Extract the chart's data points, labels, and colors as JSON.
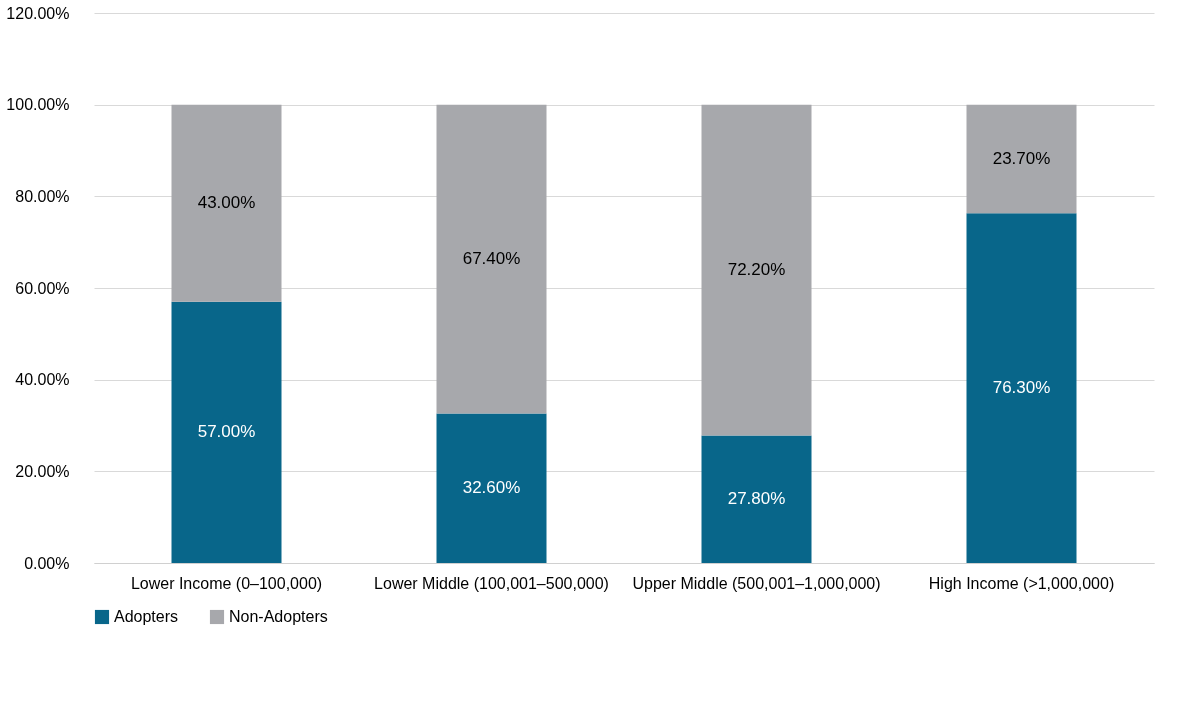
{
  "chart_data": {
    "type": "bar",
    "stacked": true,
    "categories": [
      "Lower Income (0–100,000)",
      "Lower Middle (100,001–500,000)",
      "Upper Middle (500,001–1,000,000)",
      "High Income (>1,000,000)"
    ],
    "series": [
      {
        "name": "Adopters",
        "color": "#08668a",
        "values": [
          57.0,
          32.6,
          27.8,
          76.3
        ],
        "value_labels": [
          "57.00%",
          "32.60%",
          "27.80%",
          "76.30%"
        ]
      },
      {
        "name": "Non-Adopters",
        "color": "#a7a8ac",
        "values": [
          43.0,
          67.4,
          72.2,
          23.7
        ],
        "value_labels": [
          "43.00%",
          "67.40%",
          "72.20%",
          "23.70%"
        ]
      }
    ],
    "ylim": [
      0,
      120
    ],
    "yticks": [
      {
        "value": 0,
        "label": "0.00%"
      },
      {
        "value": 20,
        "label": "20.00%"
      },
      {
        "value": 40,
        "label": "40.00%"
      },
      {
        "value": 60,
        "label": "60.00%"
      },
      {
        "value": 80,
        "label": "80.00%"
      },
      {
        "value": 100,
        "label": "100.00%"
      },
      {
        "value": 120,
        "label": "120.00%"
      }
    ],
    "grid": "y",
    "legend": "bottom"
  }
}
